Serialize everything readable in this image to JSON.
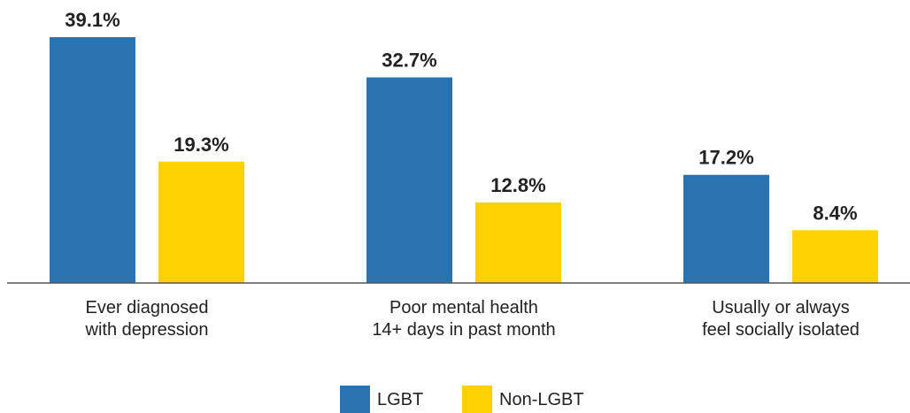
{
  "chart_data": {
    "type": "bar",
    "categories": [
      [
        "Ever diagnosed",
        "with depression"
      ],
      [
        "Poor mental health",
        "14+ days in past month"
      ],
      [
        "Usually or always",
        "feel socially isolated"
      ]
    ],
    "series": [
      {
        "name": "LGBT",
        "color": "#2b72b0",
        "values": [
          39.1,
          32.7,
          17.2
        ],
        "labels": [
          "39.1%",
          "32.7%",
          "17.2%"
        ]
      },
      {
        "name": "Non-LGBT",
        "color": "#ffd100",
        "values": [
          19.3,
          12.8,
          8.4
        ],
        "labels": [
          "19.3%",
          "12.8%",
          "8.4%"
        ]
      }
    ],
    "ylim": [
      0,
      40
    ],
    "grid": false,
    "legend_position": "bottom-center"
  }
}
